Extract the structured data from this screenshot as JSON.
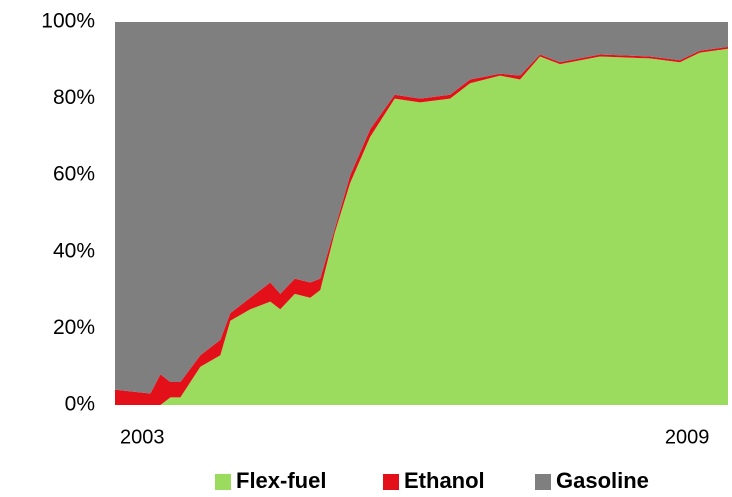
{
  "chart_data": {
    "type": "stacked_area",
    "x": [
      2002.7,
      2003.09,
      2003.2,
      2003.31,
      2003.42,
      2003.64,
      2003.86,
      2003.97,
      2004.19,
      2004.41,
      2004.52,
      2004.68,
      2004.85,
      2004.96,
      2005.12,
      2005.29,
      2005.51,
      2005.78,
      2006.06,
      2006.39,
      2006.61,
      2006.94,
      2007.16,
      2007.38,
      2007.6,
      2008.04,
      2008.59,
      2008.92,
      2009.14,
      2009.45
    ],
    "series": [
      {
        "name": "Flex-fuel",
        "color": "#9bdb5e",
        "values": [
          0,
          0,
          0,
          2,
          2,
          10,
          13,
          22,
          25,
          27,
          25,
          29,
          28,
          30,
          45,
          58,
          70,
          80,
          79,
          80,
          84,
          86,
          85,
          91,
          89,
          91,
          90.5,
          89.5,
          92,
          93
        ]
      },
      {
        "name": "Ethanol",
        "color": "#e3101a",
        "values": [
          4,
          3,
          8,
          4,
          4,
          3,
          4,
          2,
          3,
          5,
          4,
          4,
          4,
          3,
          1,
          2,
          2,
          1,
          1,
          1,
          1,
          0.5,
          1,
          0.5,
          0.5,
          0.5,
          0.5,
          0.5,
          0.5,
          0.5
        ]
      },
      {
        "name": "Gasoline",
        "color": "#7f7f7f",
        "values": [
          96,
          97,
          92,
          94,
          94,
          87,
          83,
          76,
          72,
          68,
          71,
          67,
          68,
          67,
          54,
          40,
          28,
          19,
          20,
          19,
          15,
          13.5,
          14,
          8.5,
          10.5,
          8.5,
          9,
          10,
          7.5,
          6.5
        ]
      }
    ],
    "xlim": [
      2002.7,
      2009.45
    ],
    "xticks": [
      2003,
      2009
    ],
    "ylim": [
      0,
      100
    ],
    "yticks": [
      {
        "value": 0,
        "label": "0%"
      },
      {
        "value": 20,
        "label": "20%"
      },
      {
        "value": 40,
        "label": "40%"
      },
      {
        "value": 60,
        "label": "60%"
      },
      {
        "value": 80,
        "label": "80%"
      },
      {
        "value": 100,
        "label": "100%"
      }
    ],
    "legend": "bottom"
  }
}
